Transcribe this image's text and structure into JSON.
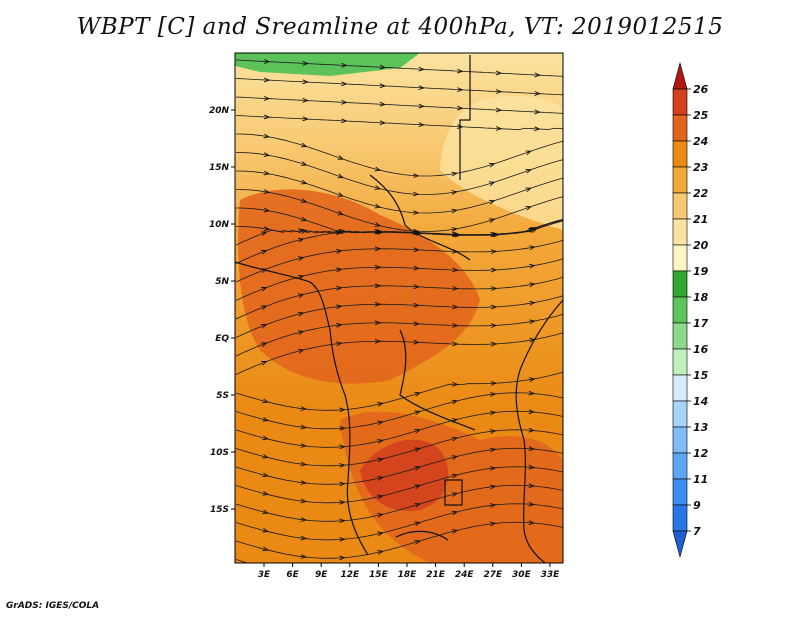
{
  "title": "WBPT [C] and Sreamline at 400hPa, VT: 2019012515",
  "footer": "GrADS: IGES/COLA",
  "map": {
    "lat_labels": [
      "20N",
      "15N",
      "10N",
      "5N",
      "EQ",
      "5S",
      "10S",
      "15S"
    ],
    "lon_labels": [
      "3E",
      "6E",
      "9E",
      "12E",
      "15E",
      "18E",
      "21E",
      "24E",
      "27E",
      "30E",
      "33E"
    ]
  },
  "colorbar": {
    "levels": [
      "7",
      "9",
      "11",
      "12",
      "13",
      "14",
      "15",
      "16",
      "17",
      "18",
      "19",
      "20",
      "21",
      "22",
      "23",
      "24",
      "25",
      "26"
    ],
    "colors": [
      "#1e5fd2",
      "#2a78e6",
      "#3c8ff0",
      "#5aa6f5",
      "#7ebbf7",
      "#a8d3fa",
      "#d6ecfc",
      "#bff0bb",
      "#8ed98b",
      "#5bc35a",
      "#30a830",
      "#fdf6c4",
      "#fbe3a0",
      "#f8c972",
      "#f3a83a",
      "#ea8a14",
      "#e2641c",
      "#d2401e",
      "#b21610"
    ]
  }
}
